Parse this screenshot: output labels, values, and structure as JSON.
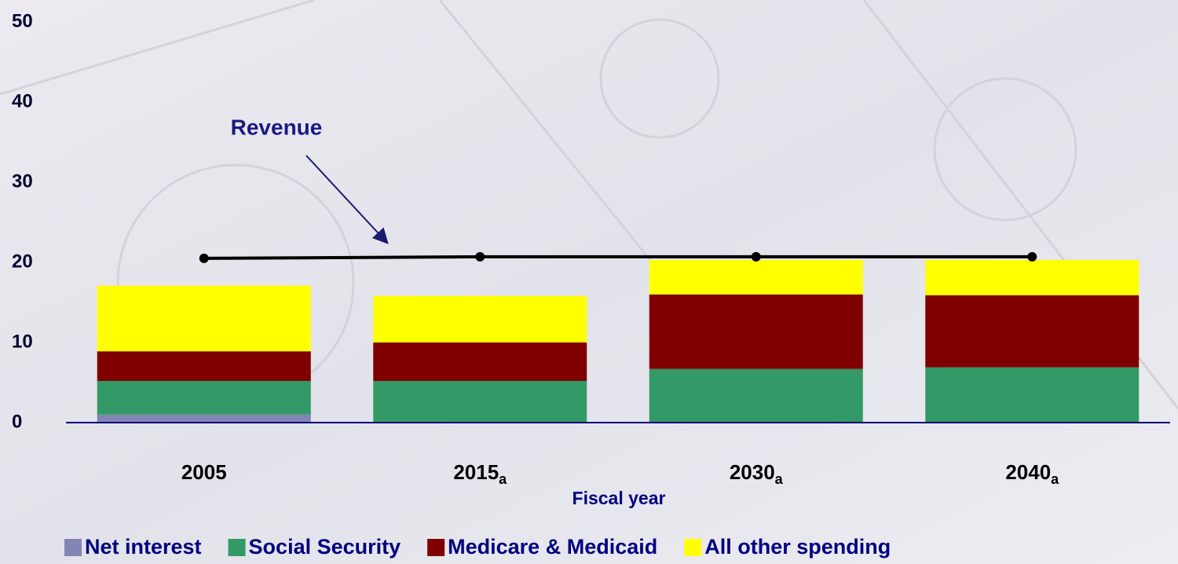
{
  "chart_data": {
    "type": "stacked-bar-line",
    "x_label": "Fiscal year",
    "categories": [
      "2005",
      "2015",
      "2030",
      "2040"
    ],
    "category_notes": [
      null,
      "a",
      "a",
      "a"
    ],
    "ylim": [
      0,
      50
    ],
    "yticks": [
      0,
      10,
      20,
      30,
      40,
      50
    ],
    "series": [
      {
        "name": "Net interest",
        "color": "#8585b5",
        "values": [
          1.0,
          0,
          0,
          0
        ]
      },
      {
        "name": "Social Security",
        "color": "#339966",
        "values": [
          4.2,
          5.2,
          6.7,
          6.9
        ]
      },
      {
        "name": "Medicare & Medicaid",
        "color": "#800000",
        "values": [
          3.7,
          4.8,
          9.3,
          9.0
        ]
      },
      {
        "name": "All other spending",
        "color": "#ffff00",
        "values": [
          8.2,
          5.8,
          4.3,
          4.4
        ]
      }
    ],
    "line": {
      "name": "Revenue",
      "color": "#000000",
      "values": [
        20.5,
        20.7,
        20.7,
        20.7
      ]
    }
  }
}
